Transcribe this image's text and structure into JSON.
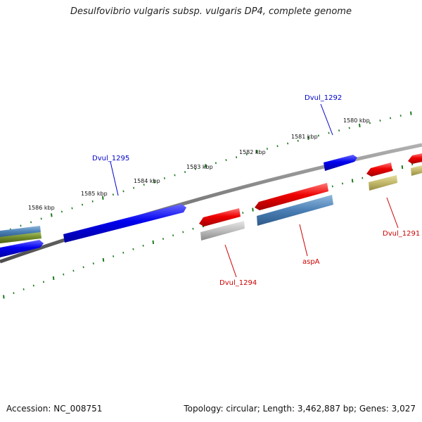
{
  "title": "Desulfovibrio vulgaris subsp. vulgaris DP4, complete genome",
  "footer": {
    "accession": "Accession: NC_008751",
    "topology": "Topology: circular; Length: 3,462,887 bp; Genes: 3,027"
  },
  "scale_labels": [
    "1586 kbp",
    "1585 kbp",
    "1584 kbp",
    "1583 kbp",
    "1582 kbp",
    "1581 kbp",
    "1580 kbp"
  ],
  "gene_labels": {
    "dvul_1292": "Dvul_1292",
    "dvul_1295": "Dvul_1295",
    "dvul_1294": "Dvul_1294",
    "aspA": "aspA",
    "dvul_1291": "Dvul_1291"
  },
  "colors": {
    "forward_cds": "#0000ee",
    "reverse_cds": "#ee0000",
    "steelblue_track": "#4a7fb5",
    "olive_track": "#6f8a2a",
    "khaki_track": "#c2b86a",
    "gray_track": "#b5b5b5",
    "backbone": "#808080",
    "tick": "#1f7a1f",
    "forward_label": "#0000cc",
    "reverse_label": "#cc0000"
  }
}
